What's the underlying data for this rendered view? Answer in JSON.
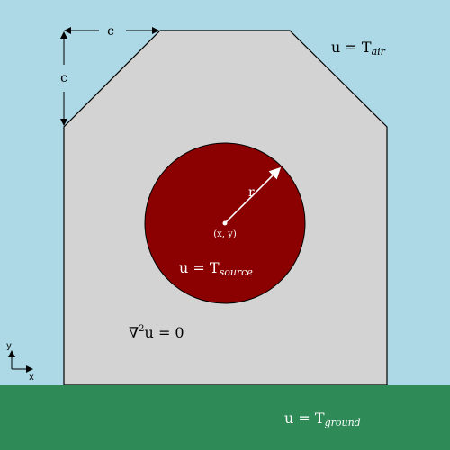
{
  "colors": {
    "sky": "#add8e6",
    "ground": "#2e8b57",
    "shape": "#d3d3d3",
    "source": "#8b0000",
    "outline": "#000000",
    "radius_line": "#ffffff"
  },
  "labels": {
    "chamfer_horizontal": "c",
    "chamfer_vertical": "c",
    "air_prefix": "u = T",
    "air_sub": "air",
    "radius": "r",
    "center": "(x, y)",
    "source_prefix": "u = T",
    "source_sub": "source",
    "laplace_prefix": "∇",
    "laplace_sup": "2",
    "laplace_suffix": "u = 0",
    "ground_prefix": "u = T",
    "ground_sub": "ground",
    "axis_y": "y",
    "axis_x": "x"
  }
}
